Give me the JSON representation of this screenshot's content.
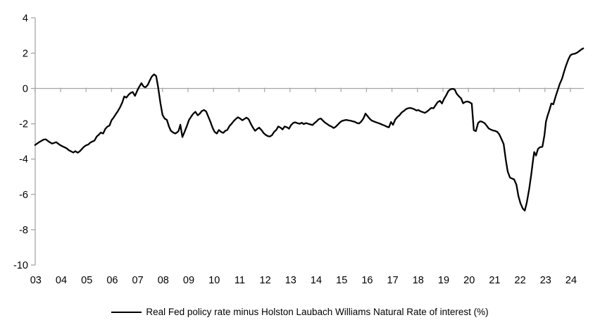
{
  "chart_data": {
    "type": "line",
    "title": "",
    "xlabel": "",
    "ylabel": "",
    "legend": "Real Fed policy rate minus Holston Laubach Williams Natural Rate of interest (%)",
    "legend_position": "bottom-center",
    "grid": "zero-line-only",
    "ylim": [
      -10,
      4
    ],
    "yticks": [
      4,
      2,
      0,
      -2,
      -4,
      -6,
      -8,
      -10
    ],
    "xlim": [
      2003,
      2024.6
    ],
    "xtick_years": [
      2003,
      2004,
      2005,
      2006,
      2007,
      2008,
      2009,
      2010,
      2011,
      2012,
      2013,
      2014,
      2015,
      2016,
      2017,
      2018,
      2019,
      2020,
      2021,
      2022,
      2023,
      2024
    ],
    "xtick_labels": [
      "03",
      "04",
      "05",
      "06",
      "07",
      "08",
      "09",
      "10",
      "11",
      "12",
      "13",
      "14",
      "15",
      "16",
      "17",
      "18",
      "19",
      "20",
      "21",
      "22",
      "23",
      "24"
    ],
    "colors": {
      "series": "#000000",
      "axis": "#a6a6a6",
      "text": "#000000"
    },
    "series": [
      {
        "name": "Real Fed policy rate minus Holston Laubach Williams Natural Rate of interest (%)",
        "points": [
          [
            2003.0,
            -3.2
          ],
          [
            2003.08,
            -3.12
          ],
          [
            2003.17,
            -3.03
          ],
          [
            2003.25,
            -2.97
          ],
          [
            2003.33,
            -2.9
          ],
          [
            2003.42,
            -2.88
          ],
          [
            2003.5,
            -2.97
          ],
          [
            2003.58,
            -3.05
          ],
          [
            2003.67,
            -3.12
          ],
          [
            2003.75,
            -3.08
          ],
          [
            2003.83,
            -3.04
          ],
          [
            2003.92,
            -3.14
          ],
          [
            2004.0,
            -3.22
          ],
          [
            2004.08,
            -3.28
          ],
          [
            2004.17,
            -3.34
          ],
          [
            2004.25,
            -3.4
          ],
          [
            2004.33,
            -3.5
          ],
          [
            2004.42,
            -3.57
          ],
          [
            2004.5,
            -3.63
          ],
          [
            2004.58,
            -3.55
          ],
          [
            2004.67,
            -3.64
          ],
          [
            2004.75,
            -3.56
          ],
          [
            2004.83,
            -3.44
          ],
          [
            2004.92,
            -3.3
          ],
          [
            2005.0,
            -3.22
          ],
          [
            2005.08,
            -3.18
          ],
          [
            2005.17,
            -3.06
          ],
          [
            2005.25,
            -3.0
          ],
          [
            2005.33,
            -2.96
          ],
          [
            2005.42,
            -2.72
          ],
          [
            2005.5,
            -2.62
          ],
          [
            2005.58,
            -2.5
          ],
          [
            2005.67,
            -2.55
          ],
          [
            2005.75,
            -2.3
          ],
          [
            2005.83,
            -2.17
          ],
          [
            2005.92,
            -2.1
          ],
          [
            2006.0,
            -1.8
          ],
          [
            2006.08,
            -1.65
          ],
          [
            2006.17,
            -1.45
          ],
          [
            2006.25,
            -1.28
          ],
          [
            2006.33,
            -1.08
          ],
          [
            2006.42,
            -0.8
          ],
          [
            2006.5,
            -0.45
          ],
          [
            2006.58,
            -0.52
          ],
          [
            2006.67,
            -0.35
          ],
          [
            2006.75,
            -0.25
          ],
          [
            2006.83,
            -0.2
          ],
          [
            2006.92,
            -0.42
          ],
          [
            2007.0,
            -0.15
          ],
          [
            2007.08,
            0.08
          ],
          [
            2007.17,
            0.3
          ],
          [
            2007.25,
            0.12
          ],
          [
            2007.33,
            0.06
          ],
          [
            2007.42,
            0.2
          ],
          [
            2007.5,
            0.45
          ],
          [
            2007.58,
            0.68
          ],
          [
            2007.67,
            0.8
          ],
          [
            2007.75,
            0.7
          ],
          [
            2007.83,
            0.05
          ],
          [
            2007.92,
            -0.85
          ],
          [
            2008.0,
            -1.5
          ],
          [
            2008.08,
            -1.7
          ],
          [
            2008.17,
            -1.78
          ],
          [
            2008.25,
            -2.15
          ],
          [
            2008.33,
            -2.4
          ],
          [
            2008.42,
            -2.5
          ],
          [
            2008.5,
            -2.55
          ],
          [
            2008.58,
            -2.48
          ],
          [
            2008.63,
            -2.4
          ],
          [
            2008.7,
            -2.05
          ],
          [
            2008.78,
            -2.75
          ],
          [
            2008.88,
            -2.4
          ],
          [
            2008.96,
            -2.1
          ],
          [
            2009.04,
            -1.78
          ],
          [
            2009.13,
            -1.58
          ],
          [
            2009.21,
            -1.42
          ],
          [
            2009.29,
            -1.32
          ],
          [
            2009.38,
            -1.52
          ],
          [
            2009.46,
            -1.42
          ],
          [
            2009.54,
            -1.28
          ],
          [
            2009.63,
            -1.22
          ],
          [
            2009.71,
            -1.3
          ],
          [
            2009.79,
            -1.58
          ],
          [
            2009.88,
            -1.9
          ],
          [
            2009.96,
            -2.22
          ],
          [
            2010.04,
            -2.45
          ],
          [
            2010.13,
            -2.55
          ],
          [
            2010.21,
            -2.35
          ],
          [
            2010.29,
            -2.45
          ],
          [
            2010.38,
            -2.52
          ],
          [
            2010.46,
            -2.4
          ],
          [
            2010.54,
            -2.35
          ],
          [
            2010.63,
            -2.12
          ],
          [
            2010.71,
            -2.0
          ],
          [
            2010.79,
            -1.85
          ],
          [
            2010.88,
            -1.72
          ],
          [
            2010.96,
            -1.63
          ],
          [
            2011.04,
            -1.7
          ],
          [
            2011.13,
            -1.8
          ],
          [
            2011.21,
            -1.73
          ],
          [
            2011.29,
            -1.65
          ],
          [
            2011.38,
            -1.75
          ],
          [
            2011.46,
            -2.0
          ],
          [
            2011.54,
            -2.2
          ],
          [
            2011.63,
            -2.4
          ],
          [
            2011.71,
            -2.3
          ],
          [
            2011.79,
            -2.22
          ],
          [
            2011.88,
            -2.36
          ],
          [
            2011.96,
            -2.52
          ],
          [
            2012.04,
            -2.62
          ],
          [
            2012.13,
            -2.7
          ],
          [
            2012.21,
            -2.72
          ],
          [
            2012.29,
            -2.65
          ],
          [
            2012.38,
            -2.45
          ],
          [
            2012.46,
            -2.35
          ],
          [
            2012.54,
            -2.15
          ],
          [
            2012.63,
            -2.22
          ],
          [
            2012.71,
            -2.32
          ],
          [
            2012.79,
            -2.15
          ],
          [
            2012.88,
            -2.2
          ],
          [
            2012.96,
            -2.28
          ],
          [
            2013.04,
            -2.08
          ],
          [
            2013.13,
            -1.95
          ],
          [
            2013.21,
            -1.92
          ],
          [
            2013.29,
            -1.97
          ],
          [
            2013.38,
            -2.0
          ],
          [
            2013.46,
            -1.94
          ],
          [
            2013.54,
            -2.02
          ],
          [
            2013.63,
            -1.96
          ],
          [
            2013.71,
            -2.0
          ],
          [
            2013.79,
            -2.03
          ],
          [
            2013.88,
            -2.07
          ],
          [
            2013.96,
            -1.96
          ],
          [
            2014.04,
            -1.87
          ],
          [
            2014.13,
            -1.74
          ],
          [
            2014.21,
            -1.7
          ],
          [
            2014.29,
            -1.82
          ],
          [
            2014.38,
            -1.94
          ],
          [
            2014.46,
            -2.02
          ],
          [
            2014.54,
            -2.1
          ],
          [
            2014.63,
            -2.16
          ],
          [
            2014.71,
            -2.24
          ],
          [
            2014.79,
            -2.17
          ],
          [
            2014.88,
            -2.04
          ],
          [
            2014.96,
            -1.92
          ],
          [
            2015.04,
            -1.84
          ],
          [
            2015.13,
            -1.8
          ],
          [
            2015.21,
            -1.78
          ],
          [
            2015.29,
            -1.81
          ],
          [
            2015.38,
            -1.83
          ],
          [
            2015.46,
            -1.86
          ],
          [
            2015.54,
            -1.89
          ],
          [
            2015.63,
            -1.96
          ],
          [
            2015.71,
            -1.98
          ],
          [
            2015.79,
            -1.88
          ],
          [
            2015.88,
            -1.7
          ],
          [
            2015.96,
            -1.42
          ],
          [
            2016.04,
            -1.56
          ],
          [
            2016.13,
            -1.72
          ],
          [
            2016.21,
            -1.82
          ],
          [
            2016.29,
            -1.87
          ],
          [
            2016.38,
            -1.92
          ],
          [
            2016.46,
            -1.96
          ],
          [
            2016.54,
            -2.0
          ],
          [
            2016.63,
            -2.06
          ],
          [
            2016.71,
            -2.1
          ],
          [
            2016.79,
            -2.16
          ],
          [
            2016.88,
            -2.2
          ],
          [
            2016.96,
            -1.9
          ],
          [
            2017.04,
            -2.06
          ],
          [
            2017.13,
            -1.76
          ],
          [
            2017.21,
            -1.62
          ],
          [
            2017.29,
            -1.52
          ],
          [
            2017.38,
            -1.36
          ],
          [
            2017.46,
            -1.28
          ],
          [
            2017.54,
            -1.18
          ],
          [
            2017.63,
            -1.12
          ],
          [
            2017.71,
            -1.1
          ],
          [
            2017.79,
            -1.13
          ],
          [
            2017.88,
            -1.18
          ],
          [
            2017.96,
            -1.25
          ],
          [
            2018.04,
            -1.22
          ],
          [
            2018.13,
            -1.3
          ],
          [
            2018.21,
            -1.34
          ],
          [
            2018.29,
            -1.38
          ],
          [
            2018.38,
            -1.3
          ],
          [
            2018.46,
            -1.2
          ],
          [
            2018.54,
            -1.1
          ],
          [
            2018.63,
            -1.12
          ],
          [
            2018.71,
            -0.95
          ],
          [
            2018.79,
            -0.78
          ],
          [
            2018.88,
            -0.7
          ],
          [
            2018.96,
            -0.85
          ],
          [
            2019.04,
            -0.6
          ],
          [
            2019.13,
            -0.38
          ],
          [
            2019.21,
            -0.15
          ],
          [
            2019.29,
            -0.05
          ],
          [
            2019.38,
            -0.02
          ],
          [
            2019.46,
            -0.06
          ],
          [
            2019.54,
            -0.3
          ],
          [
            2019.63,
            -0.45
          ],
          [
            2019.71,
            -0.56
          ],
          [
            2019.79,
            -0.84
          ],
          [
            2019.88,
            -0.76
          ],
          [
            2019.96,
            -0.74
          ],
          [
            2020.04,
            -0.78
          ],
          [
            2020.13,
            -0.86
          ],
          [
            2020.21,
            -2.36
          ],
          [
            2020.29,
            -2.42
          ],
          [
            2020.38,
            -1.95
          ],
          [
            2020.46,
            -1.86
          ],
          [
            2020.54,
            -1.89
          ],
          [
            2020.63,
            -1.96
          ],
          [
            2020.71,
            -2.1
          ],
          [
            2020.79,
            -2.26
          ],
          [
            2020.88,
            -2.33
          ],
          [
            2020.96,
            -2.38
          ],
          [
            2021.04,
            -2.4
          ],
          [
            2021.13,
            -2.46
          ],
          [
            2021.21,
            -2.6
          ],
          [
            2021.29,
            -2.85
          ],
          [
            2021.38,
            -3.15
          ],
          [
            2021.46,
            -4.0
          ],
          [
            2021.54,
            -4.7
          ],
          [
            2021.63,
            -5.05
          ],
          [
            2021.71,
            -5.1
          ],
          [
            2021.79,
            -5.15
          ],
          [
            2021.88,
            -5.45
          ],
          [
            2021.96,
            -6.1
          ],
          [
            2022.04,
            -6.5
          ],
          [
            2022.13,
            -6.8
          ],
          [
            2022.21,
            -6.92
          ],
          [
            2022.29,
            -6.45
          ],
          [
            2022.38,
            -5.7
          ],
          [
            2022.46,
            -4.9
          ],
          [
            2022.54,
            -4.0
          ],
          [
            2022.58,
            -3.6
          ],
          [
            2022.65,
            -3.8
          ],
          [
            2022.73,
            -3.42
          ],
          [
            2022.81,
            -3.32
          ],
          [
            2022.9,
            -3.3
          ],
          [
            2022.98,
            -2.65
          ],
          [
            2023.04,
            -1.9
          ],
          [
            2023.1,
            -1.56
          ],
          [
            2023.17,
            -1.25
          ],
          [
            2023.25,
            -0.85
          ],
          [
            2023.33,
            -0.9
          ],
          [
            2023.42,
            -0.45
          ],
          [
            2023.5,
            -0.1
          ],
          [
            2023.58,
            0.25
          ],
          [
            2023.67,
            0.55
          ],
          [
            2023.75,
            0.95
          ],
          [
            2023.83,
            1.3
          ],
          [
            2023.92,
            1.65
          ],
          [
            2024.0,
            1.88
          ],
          [
            2024.08,
            1.95
          ],
          [
            2024.17,
            1.97
          ],
          [
            2024.25,
            2.02
          ],
          [
            2024.33,
            2.1
          ],
          [
            2024.42,
            2.2
          ],
          [
            2024.5,
            2.27
          ]
        ]
      }
    ]
  }
}
